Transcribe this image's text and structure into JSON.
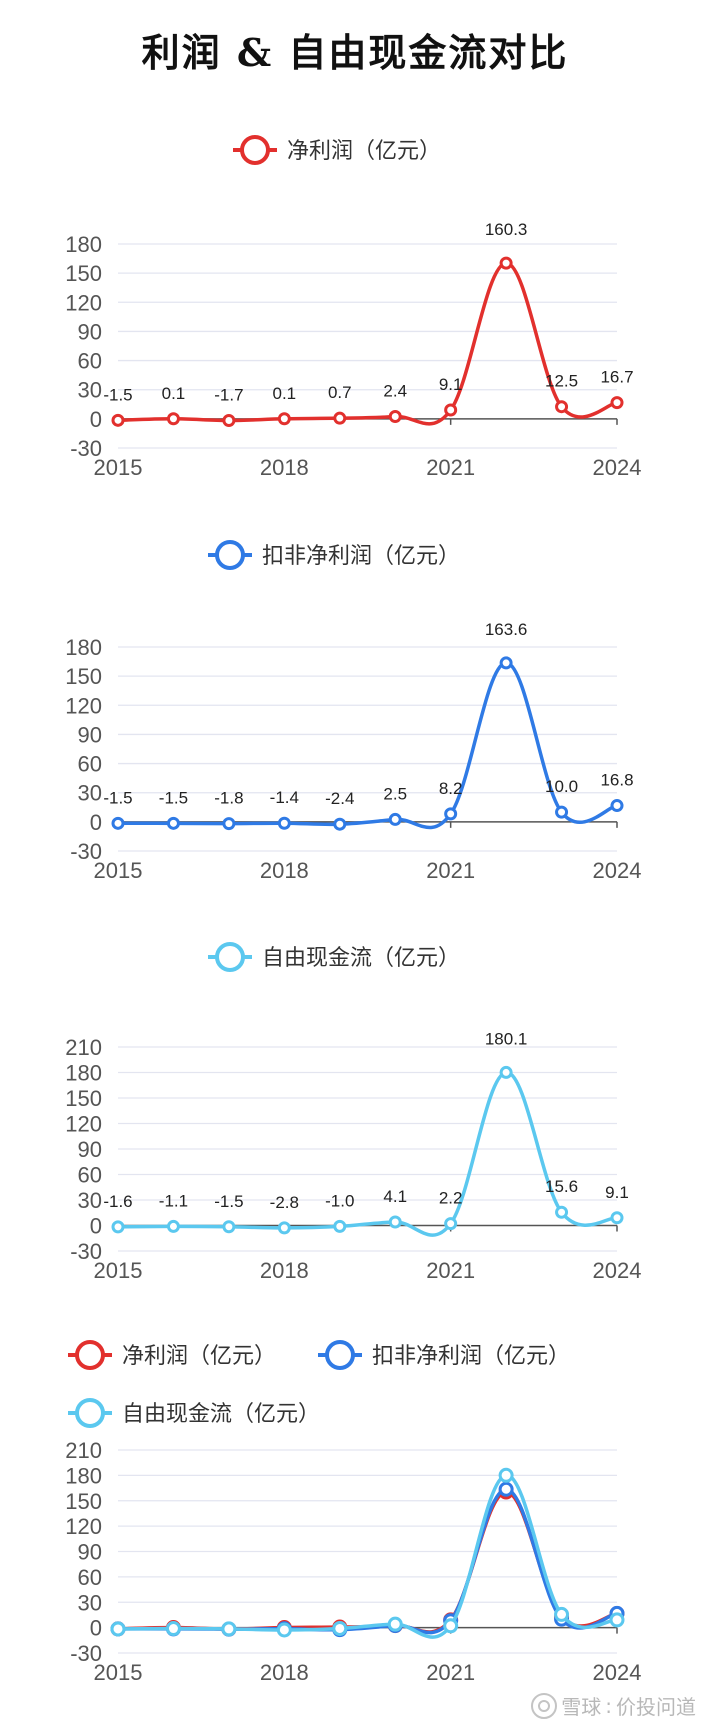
{
  "title": "利润 & 自由现金流对比",
  "watermark": {
    "brand": "雪球",
    "separator": ":",
    "author": "价投问道"
  },
  "colors": {
    "net_profit": "#e2302d",
    "net_profit_ex": "#2f7ae5",
    "fcf": "#5bc8ef",
    "grid": "#e3e5f0",
    "axis": "#555555"
  },
  "chart_data": [
    {
      "type": "line",
      "legend": [
        "净利润（亿元）"
      ],
      "x": [
        2015,
        2016,
        2017,
        2018,
        2019,
        2020,
        2021,
        2022,
        2023,
        2024
      ],
      "xticks": [
        "2015",
        "2018",
        "2021",
        "2024"
      ],
      "yticks": [
        "-30",
        "0",
        "30",
        "60",
        "90",
        "120",
        "150",
        "180"
      ],
      "ylim": [
        -30,
        180
      ],
      "series": [
        {
          "name": "净利润（亿元）",
          "color": "#e2302d",
          "values": [
            -1.5,
            0.1,
            -1.7,
            0.1,
            0.7,
            2.4,
            9.1,
            160.3,
            12.5,
            16.7
          ],
          "labels": [
            "-1.5",
            "0.1",
            "-1.7",
            "0.1",
            "0.7",
            "2.4",
            "9.1",
            "160.3",
            "12.5",
            "16.7"
          ]
        }
      ]
    },
    {
      "type": "line",
      "legend": [
        "扣非净利润（亿元）"
      ],
      "x": [
        2015,
        2016,
        2017,
        2018,
        2019,
        2020,
        2021,
        2022,
        2023,
        2024
      ],
      "xticks": [
        "2015",
        "2018",
        "2021",
        "2024"
      ],
      "yticks": [
        "-30",
        "0",
        "30",
        "60",
        "90",
        "120",
        "150",
        "180"
      ],
      "ylim": [
        -30,
        180
      ],
      "series": [
        {
          "name": "扣非净利润（亿元）",
          "color": "#2f7ae5",
          "values": [
            -1.5,
            -1.5,
            -1.8,
            -1.4,
            -2.4,
            2.5,
            8.2,
            163.6,
            10.0,
            16.8
          ],
          "labels": [
            "-1.5",
            "-1.5",
            "-1.8",
            "-1.4",
            "-2.4",
            "2.5",
            "8.2",
            "163.6",
            "10.0",
            "16.8"
          ]
        }
      ]
    },
    {
      "type": "line",
      "legend": [
        "自由现金流（亿元）"
      ],
      "x": [
        2015,
        2016,
        2017,
        2018,
        2019,
        2020,
        2021,
        2022,
        2023,
        2024
      ],
      "xticks": [
        "2015",
        "2018",
        "2021",
        "2024"
      ],
      "yticks": [
        "-30",
        "0",
        "30",
        "60",
        "90",
        "120",
        "150",
        "180",
        "210"
      ],
      "ylim": [
        -30,
        210
      ],
      "series": [
        {
          "name": "自由现金流（亿元）",
          "color": "#5bc8ef",
          "values": [
            -1.6,
            -1.1,
            -1.5,
            -2.8,
            -1.0,
            4.1,
            2.2,
            180.1,
            15.6,
            9.1
          ],
          "labels": [
            "-1.6",
            "-1.1",
            "-1.5",
            "-2.8",
            "-1.0",
            "4.1",
            "2.2",
            "180.1",
            "15.6",
            "9.1"
          ]
        }
      ]
    },
    {
      "type": "line",
      "legend": [
        "净利润（亿元）",
        "扣非净利润（亿元）",
        "自由现金流（亿元）"
      ],
      "x": [
        2015,
        2016,
        2017,
        2018,
        2019,
        2020,
        2021,
        2022,
        2023,
        2024
      ],
      "xticks": [
        "2015",
        "2018",
        "2021",
        "2024"
      ],
      "yticks": [
        "-30",
        "0",
        "30",
        "60",
        "90",
        "120",
        "150",
        "180",
        "210"
      ],
      "ylim": [
        -30,
        210
      ],
      "series": [
        {
          "name": "净利润（亿元）",
          "color": "#e2302d",
          "values": [
            -1.5,
            0.1,
            -1.7,
            0.1,
            0.7,
            2.4,
            9.1,
            160.3,
            12.5,
            16.7
          ]
        },
        {
          "name": "扣非净利润（亿元）",
          "color": "#2f7ae5",
          "values": [
            -1.5,
            -1.5,
            -1.8,
            -1.4,
            -2.4,
            2.5,
            8.2,
            163.6,
            10.0,
            16.8
          ]
        },
        {
          "name": "自由现金流（亿元）",
          "color": "#5bc8ef",
          "values": [
            -1.6,
            -1.1,
            -1.5,
            -2.8,
            -1.0,
            4.1,
            2.2,
            180.1,
            15.6,
            9.1
          ]
        }
      ]
    }
  ]
}
